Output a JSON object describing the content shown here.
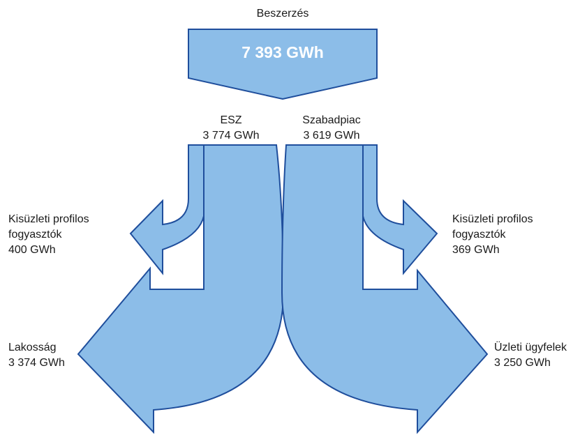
{
  "colors": {
    "fill": "#8cbde8",
    "stroke": "#1f4e9c",
    "value_text": "#ffffff"
  },
  "top": {
    "title": "Beszerzés",
    "value": "7 393 GWh"
  },
  "left_branch": {
    "name": "ESZ",
    "value": "3 774 GWh",
    "small_flow": {
      "line1": "Kisüzleti profilos",
      "line2": "fogyasztók",
      "value": "400 GWh"
    },
    "large_flow": {
      "name": "Lakosság",
      "value": "3 374 GWh"
    }
  },
  "right_branch": {
    "name": "Szabadpiac",
    "value": "3 619 GWh",
    "small_flow": {
      "line1": "Kisüzleti profilos",
      "line2": "fogyasztók",
      "value": "369 GWh"
    },
    "large_flow": {
      "name": "Üzleti ügyfelek",
      "value": "3 250 GWh"
    }
  }
}
